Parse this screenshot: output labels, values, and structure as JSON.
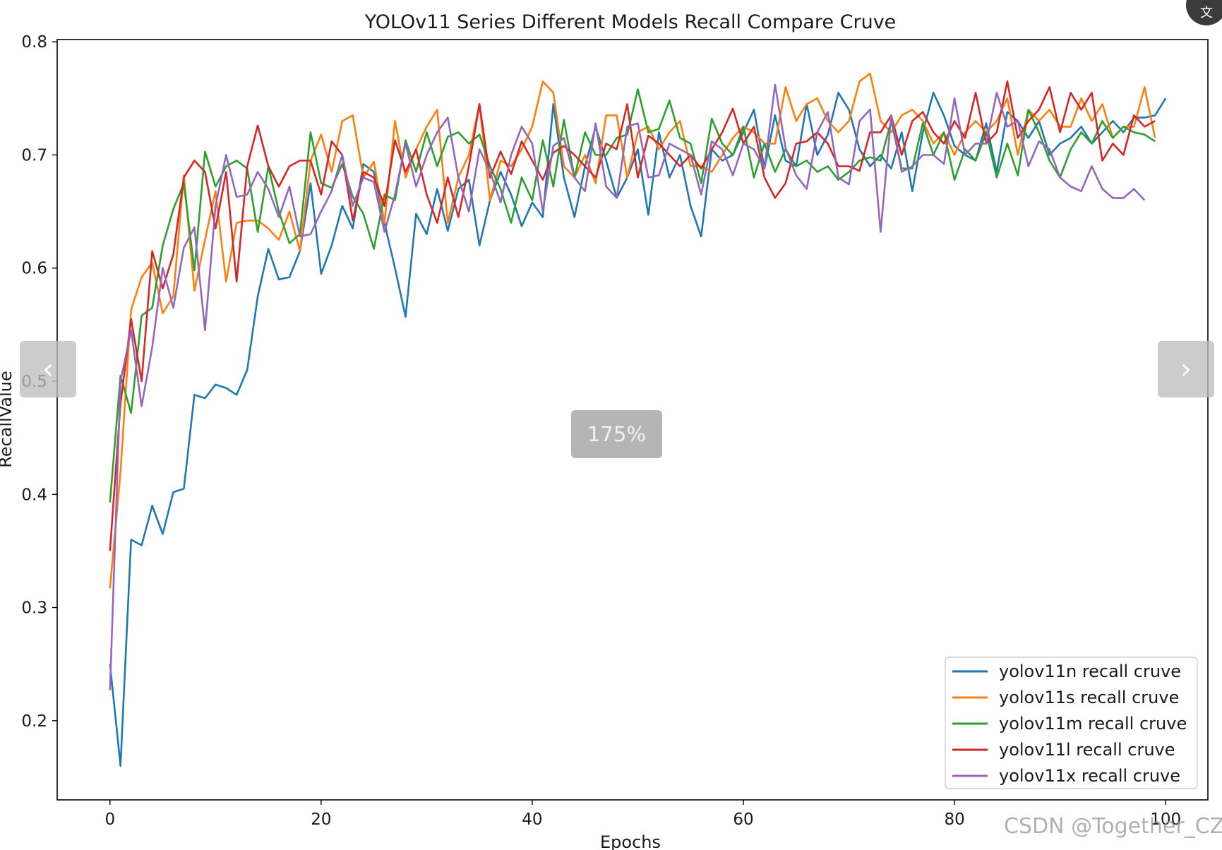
{
  "viewer": {
    "zoom_level": "175%",
    "prev_glyph": "‹",
    "next_glyph": "›",
    "translate_glyph": "文",
    "watermark": "CSDN @Together_CZ"
  },
  "chart_data": {
    "type": "line",
    "title": "YOLOv11 Series Different Models Recall Compare Cruve",
    "xlabel": "Epochs",
    "ylabel": "RecallValue",
    "xlim": [
      -5,
      104
    ],
    "ylim": [
      0.13,
      0.802
    ],
    "xticks": [
      0,
      20,
      40,
      60,
      80,
      100
    ],
    "yticks": [
      0.2,
      0.3,
      0.4,
      0.5,
      0.6,
      0.7,
      0.8
    ],
    "grid": false,
    "legend_position": "lower-right",
    "series": [
      {
        "name": "yolov11n recall cruve",
        "color": "#1f77b4",
        "values": [
          0.25,
          0.16,
          0.36,
          0.355,
          0.39,
          0.365,
          0.402,
          0.405,
          0.488,
          0.485,
          0.497,
          0.494,
          0.488,
          0.51,
          0.575,
          0.617,
          0.59,
          0.592,
          0.615,
          0.675,
          0.595,
          0.62,
          0.655,
          0.635,
          0.692,
          0.685,
          0.64,
          0.6,
          0.557,
          0.648,
          0.63,
          0.67,
          0.633,
          0.67,
          0.678,
          0.62,
          0.66,
          0.685,
          0.665,
          0.637,
          0.658,
          0.645,
          0.745,
          0.68,
          0.645,
          0.69,
          0.725,
          0.695,
          0.662,
          0.68,
          0.705,
          0.647,
          0.72,
          0.68,
          0.7,
          0.655,
          0.628,
          0.705,
          0.695,
          0.7,
          0.72,
          0.74,
          0.688,
          0.735,
          0.695,
          0.69,
          0.745,
          0.7,
          0.718,
          0.755,
          0.74,
          0.705,
          0.69,
          0.7,
          0.688,
          0.72,
          0.668,
          0.72,
          0.755,
          0.735,
          0.708,
          0.7,
          0.695,
          0.728,
          0.685,
          0.738,
          0.73,
          0.715,
          0.73,
          0.7,
          0.71,
          0.715,
          0.725,
          0.71,
          0.72,
          0.73,
          0.72,
          0.733,
          0.733,
          0.735,
          0.75
        ]
      },
      {
        "name": "yolov11s recall cruve",
        "color": "#ff7f0e",
        "values": [
          0.317,
          0.42,
          0.563,
          0.592,
          0.605,
          0.56,
          0.575,
          0.682,
          0.58,
          0.625,
          0.668,
          0.588,
          0.64,
          0.642,
          0.642,
          0.635,
          0.625,
          0.65,
          0.615,
          0.695,
          0.718,
          0.685,
          0.73,
          0.735,
          0.68,
          0.694,
          0.64,
          0.73,
          0.68,
          0.705,
          0.725,
          0.74,
          0.64,
          0.68,
          0.7,
          0.745,
          0.66,
          0.695,
          0.69,
          0.705,
          0.725,
          0.765,
          0.755,
          0.69,
          0.68,
          0.7,
          0.675,
          0.735,
          0.735,
          0.68,
          0.72,
          0.725,
          0.705,
          0.72,
          0.73,
          0.69,
          0.69,
          0.685,
          0.7,
          0.715,
          0.725,
          0.72,
          0.71,
          0.71,
          0.76,
          0.73,
          0.745,
          0.75,
          0.73,
          0.72,
          0.73,
          0.765,
          0.772,
          0.73,
          0.72,
          0.735,
          0.74,
          0.73,
          0.71,
          0.72,
          0.7,
          0.72,
          0.73,
          0.72,
          0.73,
          0.75,
          0.7,
          0.74,
          0.73,
          0.74,
          0.725,
          0.725,
          0.75,
          0.73,
          0.745,
          0.715,
          0.725,
          0.725,
          0.76,
          0.715
        ]
      },
      {
        "name": "yolov11m recall cruve",
        "color": "#2ca02c",
        "values": [
          0.393,
          0.505,
          0.472,
          0.558,
          0.565,
          0.62,
          0.652,
          0.675,
          0.598,
          0.703,
          0.672,
          0.69,
          0.695,
          0.688,
          0.632,
          0.69,
          0.65,
          0.622,
          0.63,
          0.72,
          0.675,
          0.671,
          0.692,
          0.663,
          0.648,
          0.617,
          0.665,
          0.66,
          0.713,
          0.685,
          0.72,
          0.69,
          0.716,
          0.72,
          0.71,
          0.718,
          0.69,
          0.67,
          0.64,
          0.68,
          0.66,
          0.713,
          0.672,
          0.731,
          0.68,
          0.72,
          0.7,
          0.7,
          0.715,
          0.718,
          0.758,
          0.72,
          0.723,
          0.748,
          0.715,
          0.71,
          0.675,
          0.732,
          0.71,
          0.7,
          0.725,
          0.68,
          0.71,
          0.685,
          0.705,
          0.69,
          0.695,
          0.685,
          0.69,
          0.678,
          0.685,
          0.695,
          0.698,
          0.695,
          0.73,
          0.688,
          0.688,
          0.728,
          0.7,
          0.72,
          0.678,
          0.705,
          0.695,
          0.72,
          0.68,
          0.71,
          0.682,
          0.74,
          0.72,
          0.695,
          0.68,
          0.705,
          0.72,
          0.71,
          0.73,
          0.715,
          0.725,
          0.72,
          0.718,
          0.712
        ]
      },
      {
        "name": "yolov11l recall cruve",
        "color": "#d62728",
        "values": [
          0.35,
          0.48,
          0.555,
          0.5,
          0.615,
          0.582,
          0.612,
          0.68,
          0.695,
          0.685,
          0.635,
          0.685,
          0.588,
          0.69,
          0.726,
          0.69,
          0.672,
          0.69,
          0.695,
          0.695,
          0.665,
          0.712,
          0.7,
          0.642,
          0.685,
          0.68,
          0.655,
          0.713,
          0.685,
          0.705,
          0.665,
          0.64,
          0.68,
          0.645,
          0.69,
          0.745,
          0.68,
          0.703,
          0.683,
          0.712,
          0.695,
          0.678,
          0.702,
          0.708,
          0.7,
          0.69,
          0.68,
          0.71,
          0.705,
          0.745,
          0.68,
          0.717,
          0.71,
          0.7,
          0.69,
          0.7,
          0.688,
          0.705,
          0.72,
          0.741,
          0.71,
          0.725,
          0.68,
          0.662,
          0.675,
          0.71,
          0.712,
          0.72,
          0.71,
          0.69,
          0.69,
          0.686,
          0.72,
          0.72,
          0.735,
          0.7,
          0.73,
          0.738,
          0.72,
          0.71,
          0.73,
          0.715,
          0.755,
          0.71,
          0.72,
          0.765,
          0.715,
          0.73,
          0.74,
          0.76,
          0.72,
          0.755,
          0.74,
          0.755,
          0.695,
          0.71,
          0.7,
          0.735,
          0.725,
          0.73
        ]
      },
      {
        "name": "yolov11x recall cruve",
        "color": "#9467bd",
        "values": [
          0.227,
          0.5,
          0.545,
          0.478,
          0.53,
          0.6,
          0.565,
          0.618,
          0.636,
          0.545,
          0.655,
          0.7,
          0.663,
          0.665,
          0.685,
          0.67,
          0.645,
          0.672,
          0.628,
          0.63,
          0.65,
          0.668,
          0.7,
          0.655,
          0.68,
          0.676,
          0.632,
          0.665,
          0.71,
          0.672,
          0.7,
          0.72,
          0.733,
          0.68,
          0.65,
          0.705,
          0.685,
          0.658,
          0.7,
          0.725,
          0.71,
          0.65,
          0.708,
          0.715,
          0.68,
          0.668,
          0.728,
          0.672,
          0.662,
          0.725,
          0.728,
          0.68,
          0.682,
          0.71,
          0.705,
          0.7,
          0.665,
          0.712,
          0.705,
          0.682,
          0.71,
          0.705,
          0.688,
          0.762,
          0.706,
          0.682,
          0.67,
          0.72,
          0.738,
          0.68,
          0.674,
          0.73,
          0.74,
          0.632,
          0.735,
          0.685,
          0.69,
          0.7,
          0.7,
          0.692,
          0.75,
          0.7,
          0.71,
          0.71,
          0.755,
          0.725,
          0.73,
          0.69,
          0.712,
          0.705,
          0.68,
          0.672,
          0.668,
          0.69,
          0.67,
          0.662,
          0.662,
          0.67,
          0.66
        ]
      }
    ]
  }
}
